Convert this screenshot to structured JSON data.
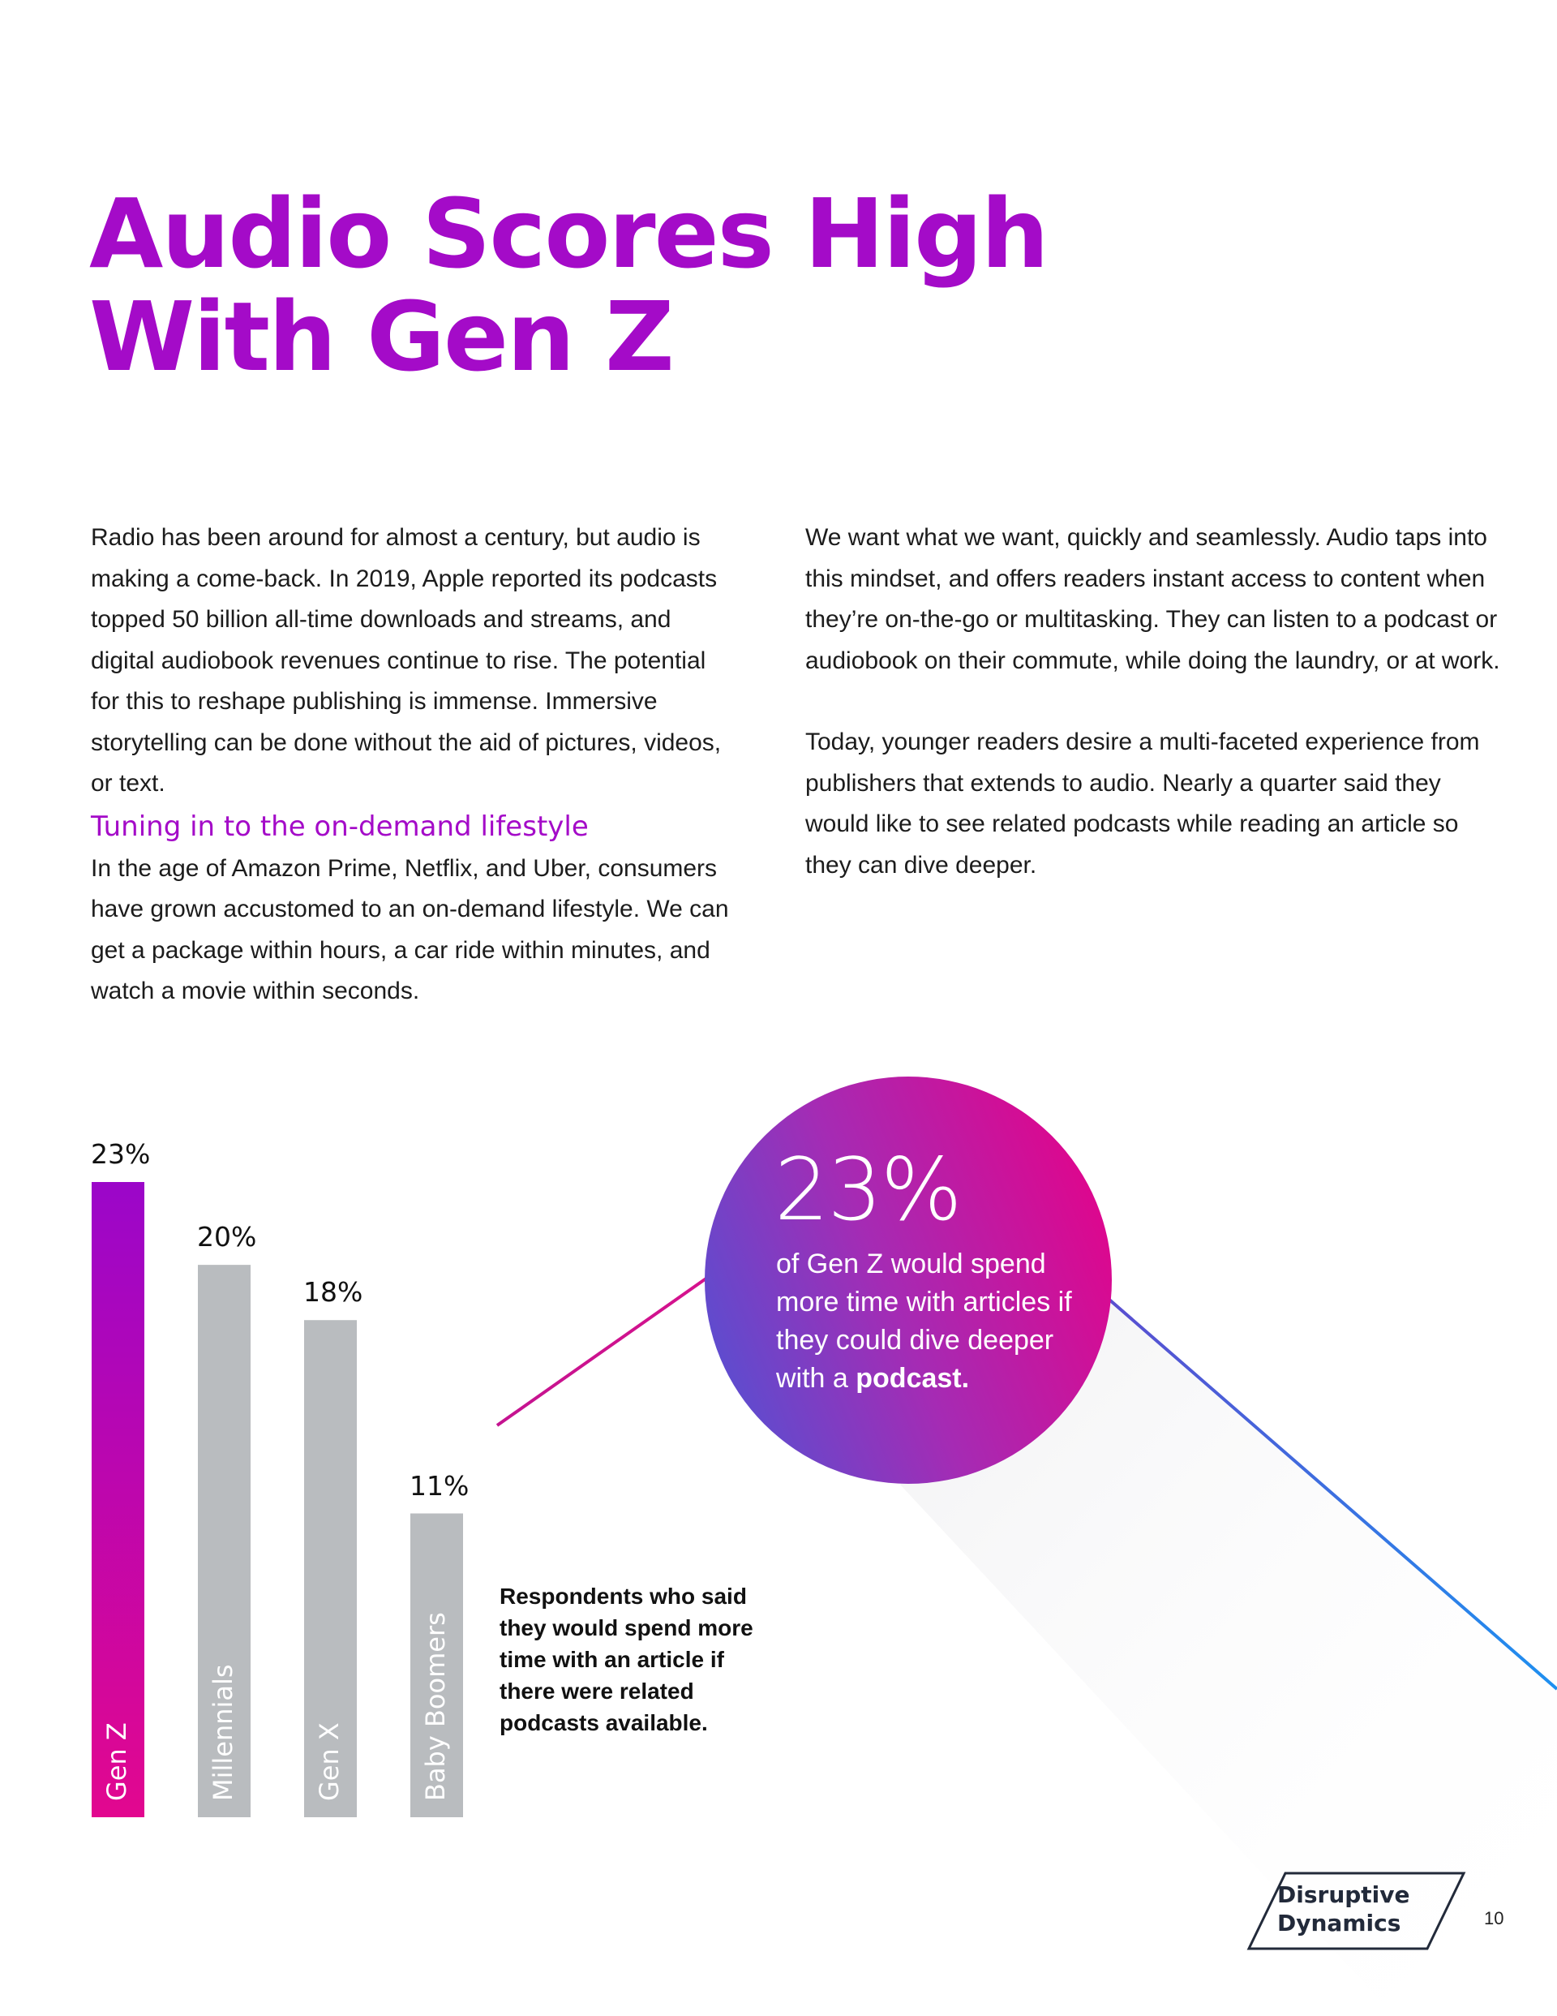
{
  "title": {
    "line1": "Audio Scores High",
    "line2": "With Gen Z"
  },
  "left_column": {
    "para1": "Radio has been around for almost a century, but audio is making a come-back. In 2019, Apple reported its podcasts topped 50 billion all-time downloads and streams, and digital audiobook revenues continue to rise. The potential for this to reshape publishing is immense. Immersive storytelling can be done without the aid of pictures, videos, or text.",
    "subheading": "Tuning in to the on-demand lifestyle",
    "para2": "In the age of Amazon Prime, Netflix, and Uber, consumers have grown accustomed to an on-demand lifestyle. We can get a package within hours, a car ride within minutes, and watch a movie within seconds."
  },
  "right_column": {
    "para1": "We want what we want, quickly and seamlessly. Audio taps into this mindset, and offers readers instant access to content when they’re on-the-go or multitasking. They can listen to a podcast or audiobook on their commute, while doing the laundry, or at work.",
    "para2": "Today, younger readers desire a multi-faceted experience from publishers that extends to audio. Nearly a quarter said they would like to see related podcasts while reading an article so they can dive deeper."
  },
  "chart_data": {
    "type": "bar",
    "categories": [
      "Gen Z",
      "Millennials",
      "Gen X",
      "Baby Boomers"
    ],
    "values": [
      23,
      20,
      18,
      11
    ],
    "value_labels": [
      "23%",
      "20%",
      "18%",
      "11%"
    ],
    "unit": "%",
    "ylim": [
      0,
      23
    ],
    "caption": "Respondents who said they would spend more time with an article if there were related podcasts available.",
    "colors": {
      "highlight_top": "#9b06c9",
      "highlight_bottom": "#e2078f",
      "default": "#b9bcbf"
    }
  },
  "callout": {
    "stat": "23%",
    "text": "of Gen Z would spend more time with articles if they could dive deeper with a ",
    "emphasis": "podcast.",
    "gradient_colors": [
      "#5a4ed0",
      "#a52bb4",
      "#e0058c"
    ]
  },
  "footer": {
    "brand_line1": "Disruptive",
    "brand_line2": "Dynamics",
    "page_number": "10"
  }
}
